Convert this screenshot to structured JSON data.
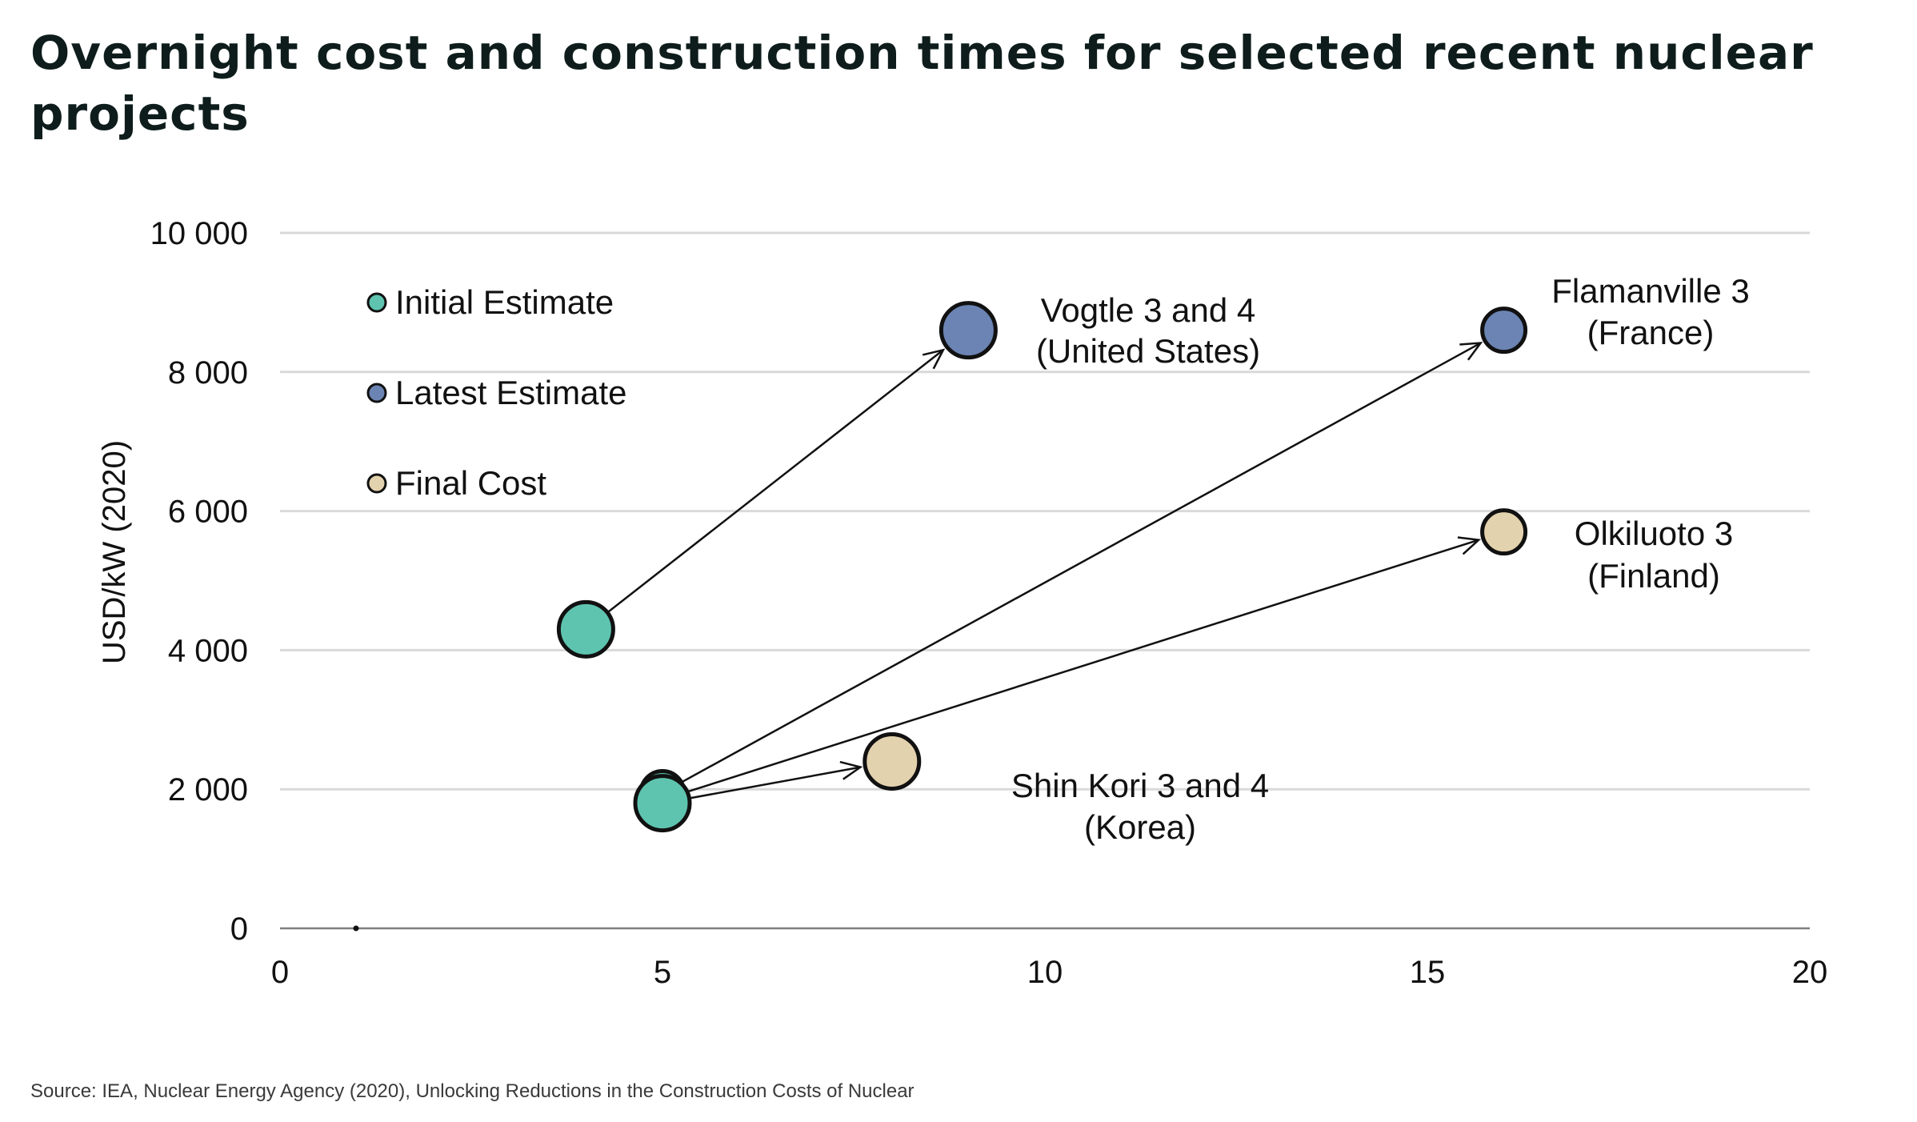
{
  "title": "Overnight cost and construction times for selected recent nuclear projects",
  "source": "Source: IEA, Nuclear Energy Agency (2020), Unlocking Reductions in the Construction Costs of Nuclear",
  "colors": {
    "initial": "#5ec4b0",
    "latest": "#6b84b3",
    "final": "#e3d2ae",
    "grid": "#d9d9d9",
    "text": "#111111"
  },
  "chart_data": {
    "type": "scatter",
    "title": "Overnight cost and construction times for selected recent nuclear projects",
    "xlabel": "",
    "ylabel": "USD/kW (2020)",
    "xlim": [
      0,
      20
    ],
    "ylim": [
      0,
      10000
    ],
    "xticks": [
      0,
      5,
      10,
      15,
      20
    ],
    "xtick_labels": [
      "0",
      "5",
      "10",
      "15",
      "20"
    ],
    "yticks": [
      0,
      2000,
      4000,
      6000,
      8000,
      10000
    ],
    "ytick_labels": [
      "0",
      "2 000",
      "4 000",
      "6 000",
      "8 000",
      "10 000"
    ],
    "grid": "horizontal",
    "legend_position": "top-left",
    "legend": [
      {
        "label": "Initial Estimate",
        "key": "initial"
      },
      {
        "label": "Latest Estimate",
        "key": "latest"
      },
      {
        "label": "Final Cost",
        "key": "final"
      }
    ],
    "points": [
      {
        "project": "vogtle",
        "kind": "initial",
        "x": 4,
        "y": 4300,
        "size": "large"
      },
      {
        "project": "vogtle",
        "kind": "latest",
        "x": 9,
        "y": 8600,
        "size": "large"
      },
      {
        "project": "flamanville",
        "kind": "initial",
        "x": 5,
        "y": 1950,
        "size": "medium"
      },
      {
        "project": "flamanville",
        "kind": "latest",
        "x": 16,
        "y": 8600,
        "size": "medium"
      },
      {
        "project": "olkiluoto",
        "kind": "initial",
        "x": 5,
        "y": 1850,
        "size": "medium"
      },
      {
        "project": "olkiluoto",
        "kind": "final",
        "x": 16,
        "y": 5700,
        "size": "medium"
      },
      {
        "project": "shinkori",
        "kind": "initial",
        "x": 5,
        "y": 1800,
        "size": "large"
      },
      {
        "project": "shinkori",
        "kind": "final",
        "x": 8,
        "y": 2400,
        "size": "large"
      }
    ],
    "arrows": [
      {
        "project": "vogtle",
        "from": [
          4,
          4300
        ],
        "to": [
          9,
          8600
        ]
      },
      {
        "project": "flamanville",
        "from": [
          5,
          1950
        ],
        "to": [
          16,
          8600
        ]
      },
      {
        "project": "olkiluoto",
        "from": [
          5,
          1850
        ],
        "to": [
          16,
          5700
        ]
      },
      {
        "project": "shinkori",
        "from": [
          5,
          1800
        ],
        "to": [
          8,
          2400
        ]
      }
    ],
    "annotations": [
      {
        "project": "vogtle",
        "lines": [
          "Vogtle 3 and 4",
          "(United States)"
        ]
      },
      {
        "project": "flamanville",
        "lines": [
          "Flamanville 3",
          "(France)"
        ]
      },
      {
        "project": "olkiluoto",
        "lines": [
          "Olkiluoto 3",
          "(Finland)"
        ]
      },
      {
        "project": "shinkori",
        "lines": [
          "Shin Kori 3 and 4",
          "(Korea)"
        ]
      }
    ]
  }
}
